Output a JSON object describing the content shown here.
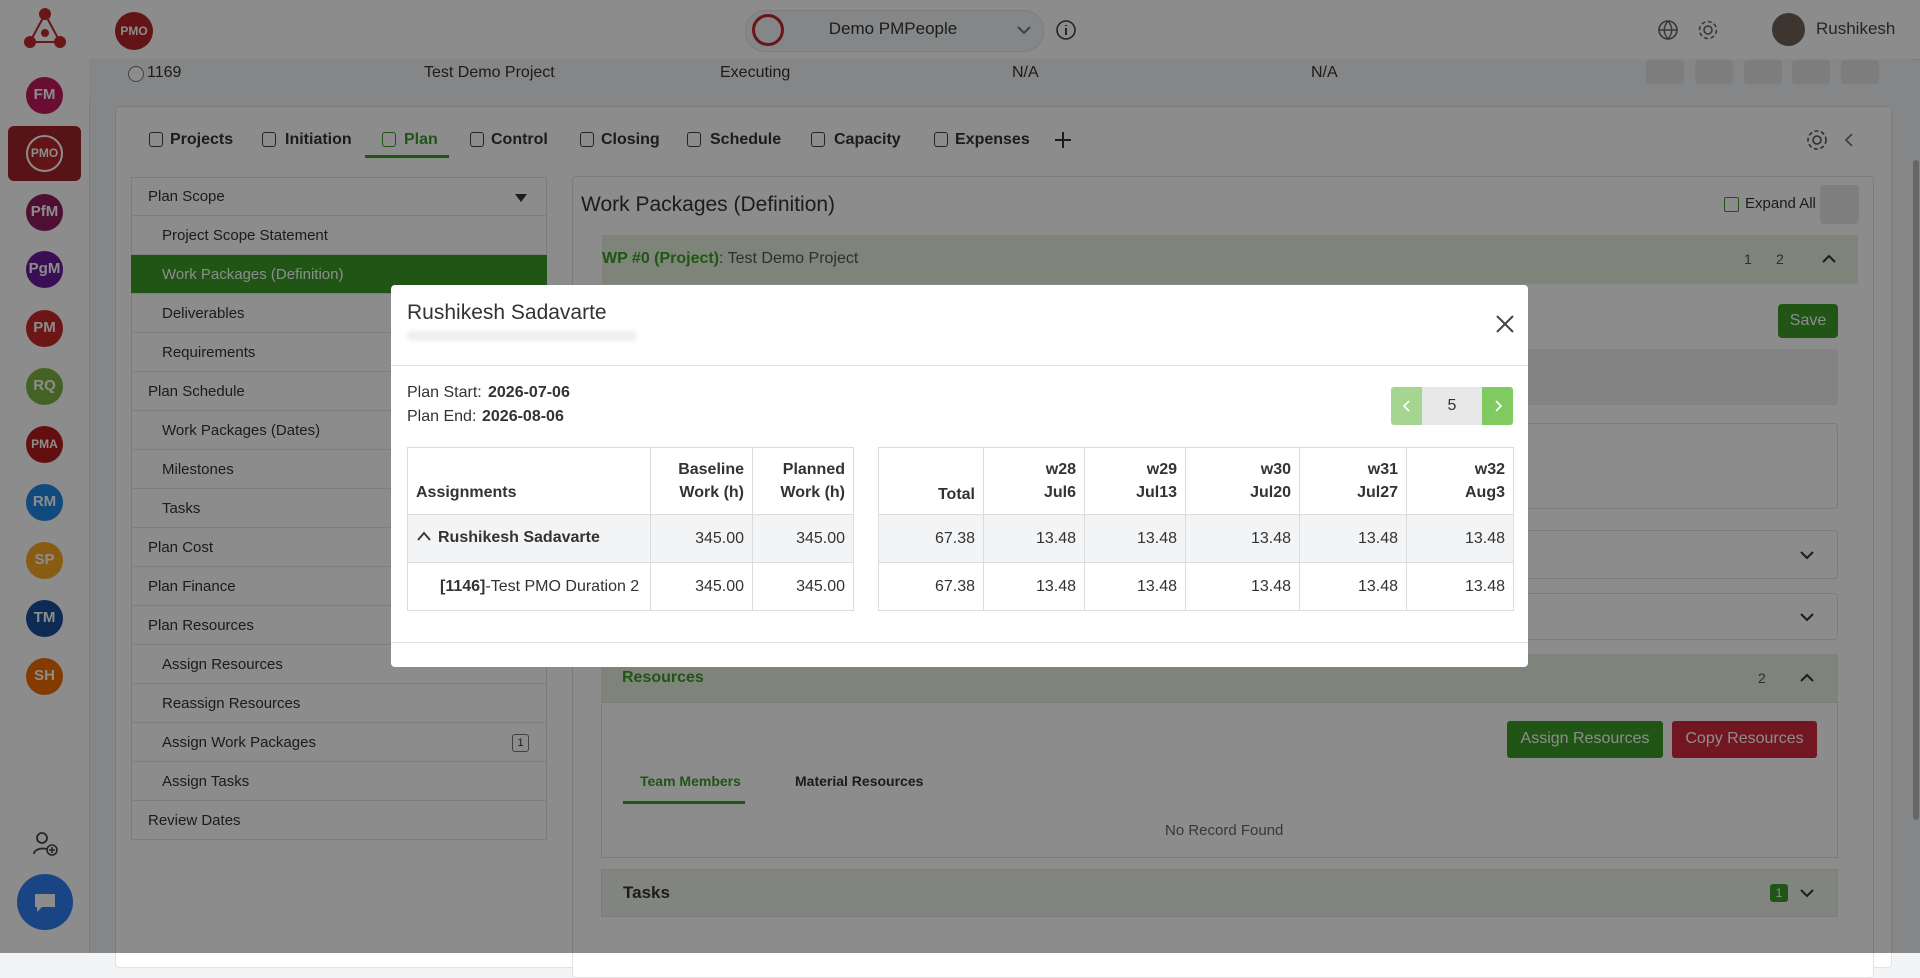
{
  "topbar": {
    "org_badge": "PMO",
    "workspace": "Demo PMPeople",
    "user": "Rushikesh"
  },
  "sidebar": {
    "apps": [
      "FM",
      "PMO",
      "PfM",
      "PgM",
      "PM",
      "RQ",
      "PMA",
      "RM",
      "SP",
      "TM",
      "SH"
    ]
  },
  "project_row": [
    "1169",
    "Test Demo Project",
    "Executing",
    "N/A",
    "N/A"
  ],
  "tabs": [
    "Projects",
    "Initiation",
    "Plan",
    "Control",
    "Closing",
    "Schedule",
    "Capacity",
    "Expenses"
  ],
  "menu": [
    {
      "title": "Plan Scope",
      "items": [
        {
          "label": "Project Scope Statement"
        },
        {
          "label": "Work Packages (Definition)"
        },
        {
          "label": "Deliverables"
        },
        {
          "label": "Requirements"
        }
      ]
    },
    {
      "title": "Plan Schedule",
      "items": [
        {
          "label": "Work Packages (Dates)"
        },
        {
          "label": "Milestones"
        },
        {
          "label": "Tasks"
        }
      ]
    },
    {
      "title": "Plan Cost",
      "items": []
    },
    {
      "title": "Plan Finance",
      "items": []
    },
    {
      "title": "Plan Resources",
      "items": [
        {
          "label": "Assign Resources"
        },
        {
          "label": "Reassign Resources"
        },
        {
          "label": "Assign Work Packages",
          "badge": "1"
        },
        {
          "label": "Assign Tasks"
        }
      ]
    },
    {
      "title": "Review Dates",
      "items": []
    }
  ],
  "main": {
    "title": "Work Packages (Definition)",
    "expand_all": "Expand All",
    "wp_label": "WP #0 (Project)",
    "wp_name": ": Test Demo Project",
    "wp_count_1": "1",
    "wp_count_2": "2",
    "save": "Save",
    "resources": "Resources",
    "resources_count": "2",
    "assign_resources": "Assign Resources",
    "copy_resources": "Copy Resources",
    "team_members": "Team Members",
    "material_resources": "Material Resources",
    "no_record": "No Record Found",
    "tasks": "Tasks",
    "tasks_count": "1"
  },
  "modal": {
    "title": "Rushikesh Sadavarte",
    "plan_start_label": "Plan Start:",
    "plan_start": "2026-07-06",
    "plan_end_label": "Plan End:",
    "plan_end": "2026-08-06",
    "page": "5",
    "left_table": {
      "headers": [
        "Assignments",
        "Baseline Work (h)",
        "Planned Work (h)"
      ],
      "rows": [
        {
          "name": "Rushikesh Sadavarte",
          "values": [
            "345.00",
            "345.00"
          ]
        },
        {
          "code": "[1146]",
          "name": "-Test PMO Duration 2",
          "values": [
            "345.00",
            "345.00"
          ]
        }
      ]
    },
    "right_table": {
      "total_header": "Total",
      "weeks": [
        {
          "week": "w28",
          "date": "Jul6"
        },
        {
          "week": "w29",
          "date": "Jul13"
        },
        {
          "week": "w30",
          "date": "Jul20"
        },
        {
          "week": "w31",
          "date": "Jul27"
        },
        {
          "week": "w32",
          "date": "Aug3"
        }
      ],
      "rows": [
        {
          "total": "67.38",
          "values": [
            "13.48",
            "13.48",
            "13.48",
            "13.48",
            "13.48"
          ]
        },
        {
          "total": "67.38",
          "values": [
            "13.48",
            "13.48",
            "13.48",
            "13.48",
            "13.48"
          ]
        }
      ]
    }
  }
}
